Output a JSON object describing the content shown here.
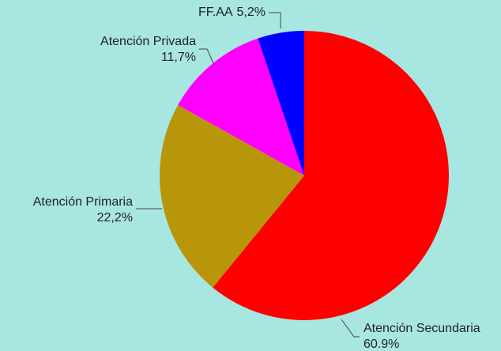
{
  "chart_data": {
    "type": "pie",
    "categories": [
      "Atención Secundaria",
      "Atención Primaria",
      "Atención Privada",
      "FF.AA"
    ],
    "values": [
      60.9,
      22.2,
      11.7,
      5.2
    ],
    "value_labels": [
      "60.9%",
      "22,2%",
      "11,7%",
      "5,2%"
    ],
    "colors": [
      "#ff0000",
      "#b8960a",
      "#ff00ff",
      "#0000ff"
    ]
  }
}
